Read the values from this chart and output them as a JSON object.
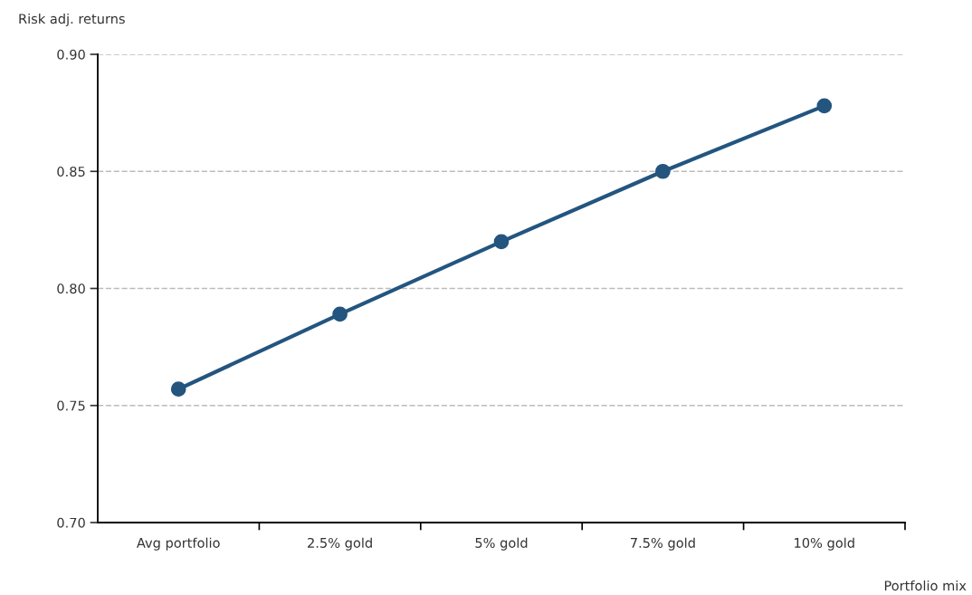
{
  "chart_data": {
    "type": "line",
    "ylabel": "Risk adj. returns",
    "xlabel": "Portfolio mix",
    "categories": [
      "Avg portfolio",
      "2.5% gold",
      "5% gold",
      "7.5% gold",
      "10% gold"
    ],
    "series": [
      {
        "color": "#23557f",
        "values": [
          0.757,
          0.789,
          0.82,
          0.85,
          0.878
        ]
      }
    ],
    "ylim": [
      0.7,
      0.9
    ],
    "yticks": [
      {
        "value": 0.7,
        "label": "0.70"
      },
      {
        "value": 0.75,
        "label": "0.75"
      },
      {
        "value": 0.8,
        "label": "0.80"
      },
      {
        "value": 0.85,
        "label": "0.85"
      },
      {
        "value": 0.9,
        "label": "0.90"
      }
    ],
    "grid": "y",
    "marker": "circle",
    "line_style": "solid",
    "legend": false
  }
}
